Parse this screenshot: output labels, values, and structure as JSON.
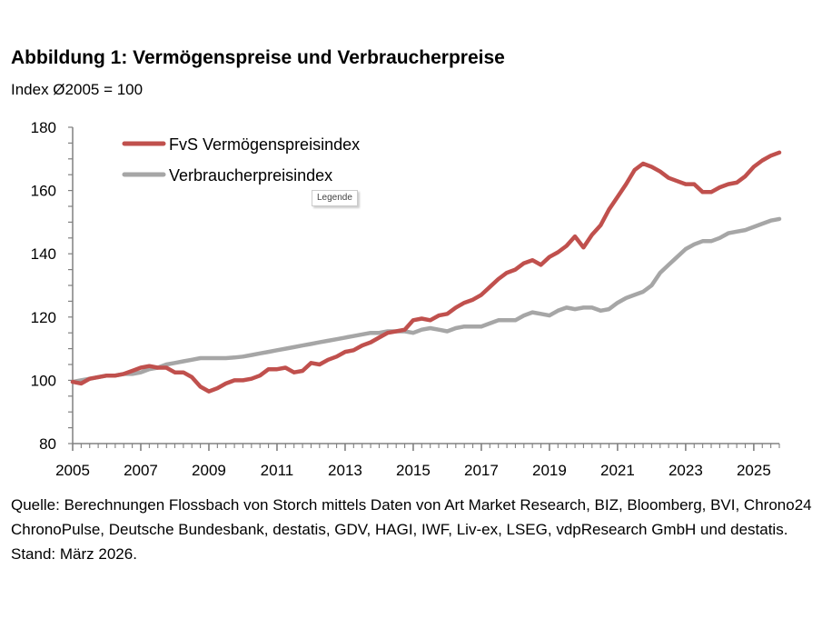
{
  "title": "Abbildung 1: Vermögenspreise und Verbraucherpreise",
  "subtitle": "Index Ø2005 = 100",
  "tooltip": "Legende",
  "source": "Quelle: Berechnungen Flossbach von Storch mittels Daten von Art Market Research, BIZ, Bloomberg, BVI, Chrono24 ChronoPulse, Deutsche Bundesbank, destatis, GDV, HAGI, IWF, Liv-ex, LSEG, vdpResearch GmbH und destatis. Stand: März 2026.",
  "chart_data": {
    "type": "line",
    "title": "Abbildung 1: Vermögenspreise und Verbraucherpreise",
    "ylabel": "Index Ø2005 = 100",
    "xlim": [
      2005,
      2025.75
    ],
    "ylim": [
      80,
      180
    ],
    "yticks": [
      80,
      100,
      120,
      140,
      160,
      180
    ],
    "xticks": [
      2005,
      2007,
      2009,
      2011,
      2013,
      2015,
      2017,
      2019,
      2021,
      2023,
      2025
    ],
    "x_frequency": "quarterly",
    "x_start": 2005,
    "legend_position": "top-left",
    "grid": false,
    "series": [
      {
        "name": "FvS Vermögenspreisindex",
        "color": "#C0504D",
        "values": [
          99.5,
          99,
          100.5,
          101,
          101.5,
          101.5,
          102,
          103,
          104,
          104.5,
          104,
          104,
          102.5,
          102.5,
          101,
          98,
          96.5,
          97.5,
          99,
          100,
          100,
          100.5,
          101.5,
          103.5,
          103.5,
          104,
          102.5,
          103,
          105.5,
          105,
          106.5,
          107.5,
          109,
          109.5,
          111,
          112,
          113.5,
          115,
          115.5,
          116,
          119,
          119.5,
          119,
          120.5,
          121,
          123,
          124.5,
          125.5,
          127,
          129.5,
          132,
          134,
          135,
          137,
          138,
          136.5,
          139,
          140.5,
          142.5,
          145.5,
          142,
          146,
          149,
          154,
          158,
          162,
          166.5,
          168.5,
          167.5,
          166,
          164,
          163,
          162,
          162,
          159.5,
          159.5,
          161,
          162,
          162.5,
          164.5,
          167.5,
          169.5,
          171,
          172
        ]
      },
      {
        "name": "Verbraucherpreisindex",
        "color": "#A6A6A6",
        "values": [
          99.5,
          100,
          100.5,
          101,
          101.5,
          101.5,
          102,
          102,
          102.5,
          103.5,
          104,
          105,
          105.5,
          106,
          106.5,
          107,
          107,
          107,
          107,
          107.2,
          107.5,
          108,
          108.5,
          109,
          109.5,
          110,
          110.5,
          111,
          111.5,
          112,
          112.5,
          113,
          113.5,
          114,
          114.5,
          115,
          115,
          115.5,
          115.5,
          115.5,
          115,
          116,
          116.5,
          116,
          115.5,
          116.5,
          117,
          117,
          117,
          118,
          119,
          119,
          119,
          120.5,
          121.5,
          121,
          120.5,
          122,
          123,
          122.5,
          123,
          123,
          122,
          122.5,
          124.5,
          126,
          127,
          128,
          130,
          134,
          136.5,
          139,
          141.5,
          143,
          144,
          144,
          145,
          146.5,
          147,
          147.5,
          148.5,
          149.5,
          150.5,
          151
        ]
      }
    ]
  }
}
